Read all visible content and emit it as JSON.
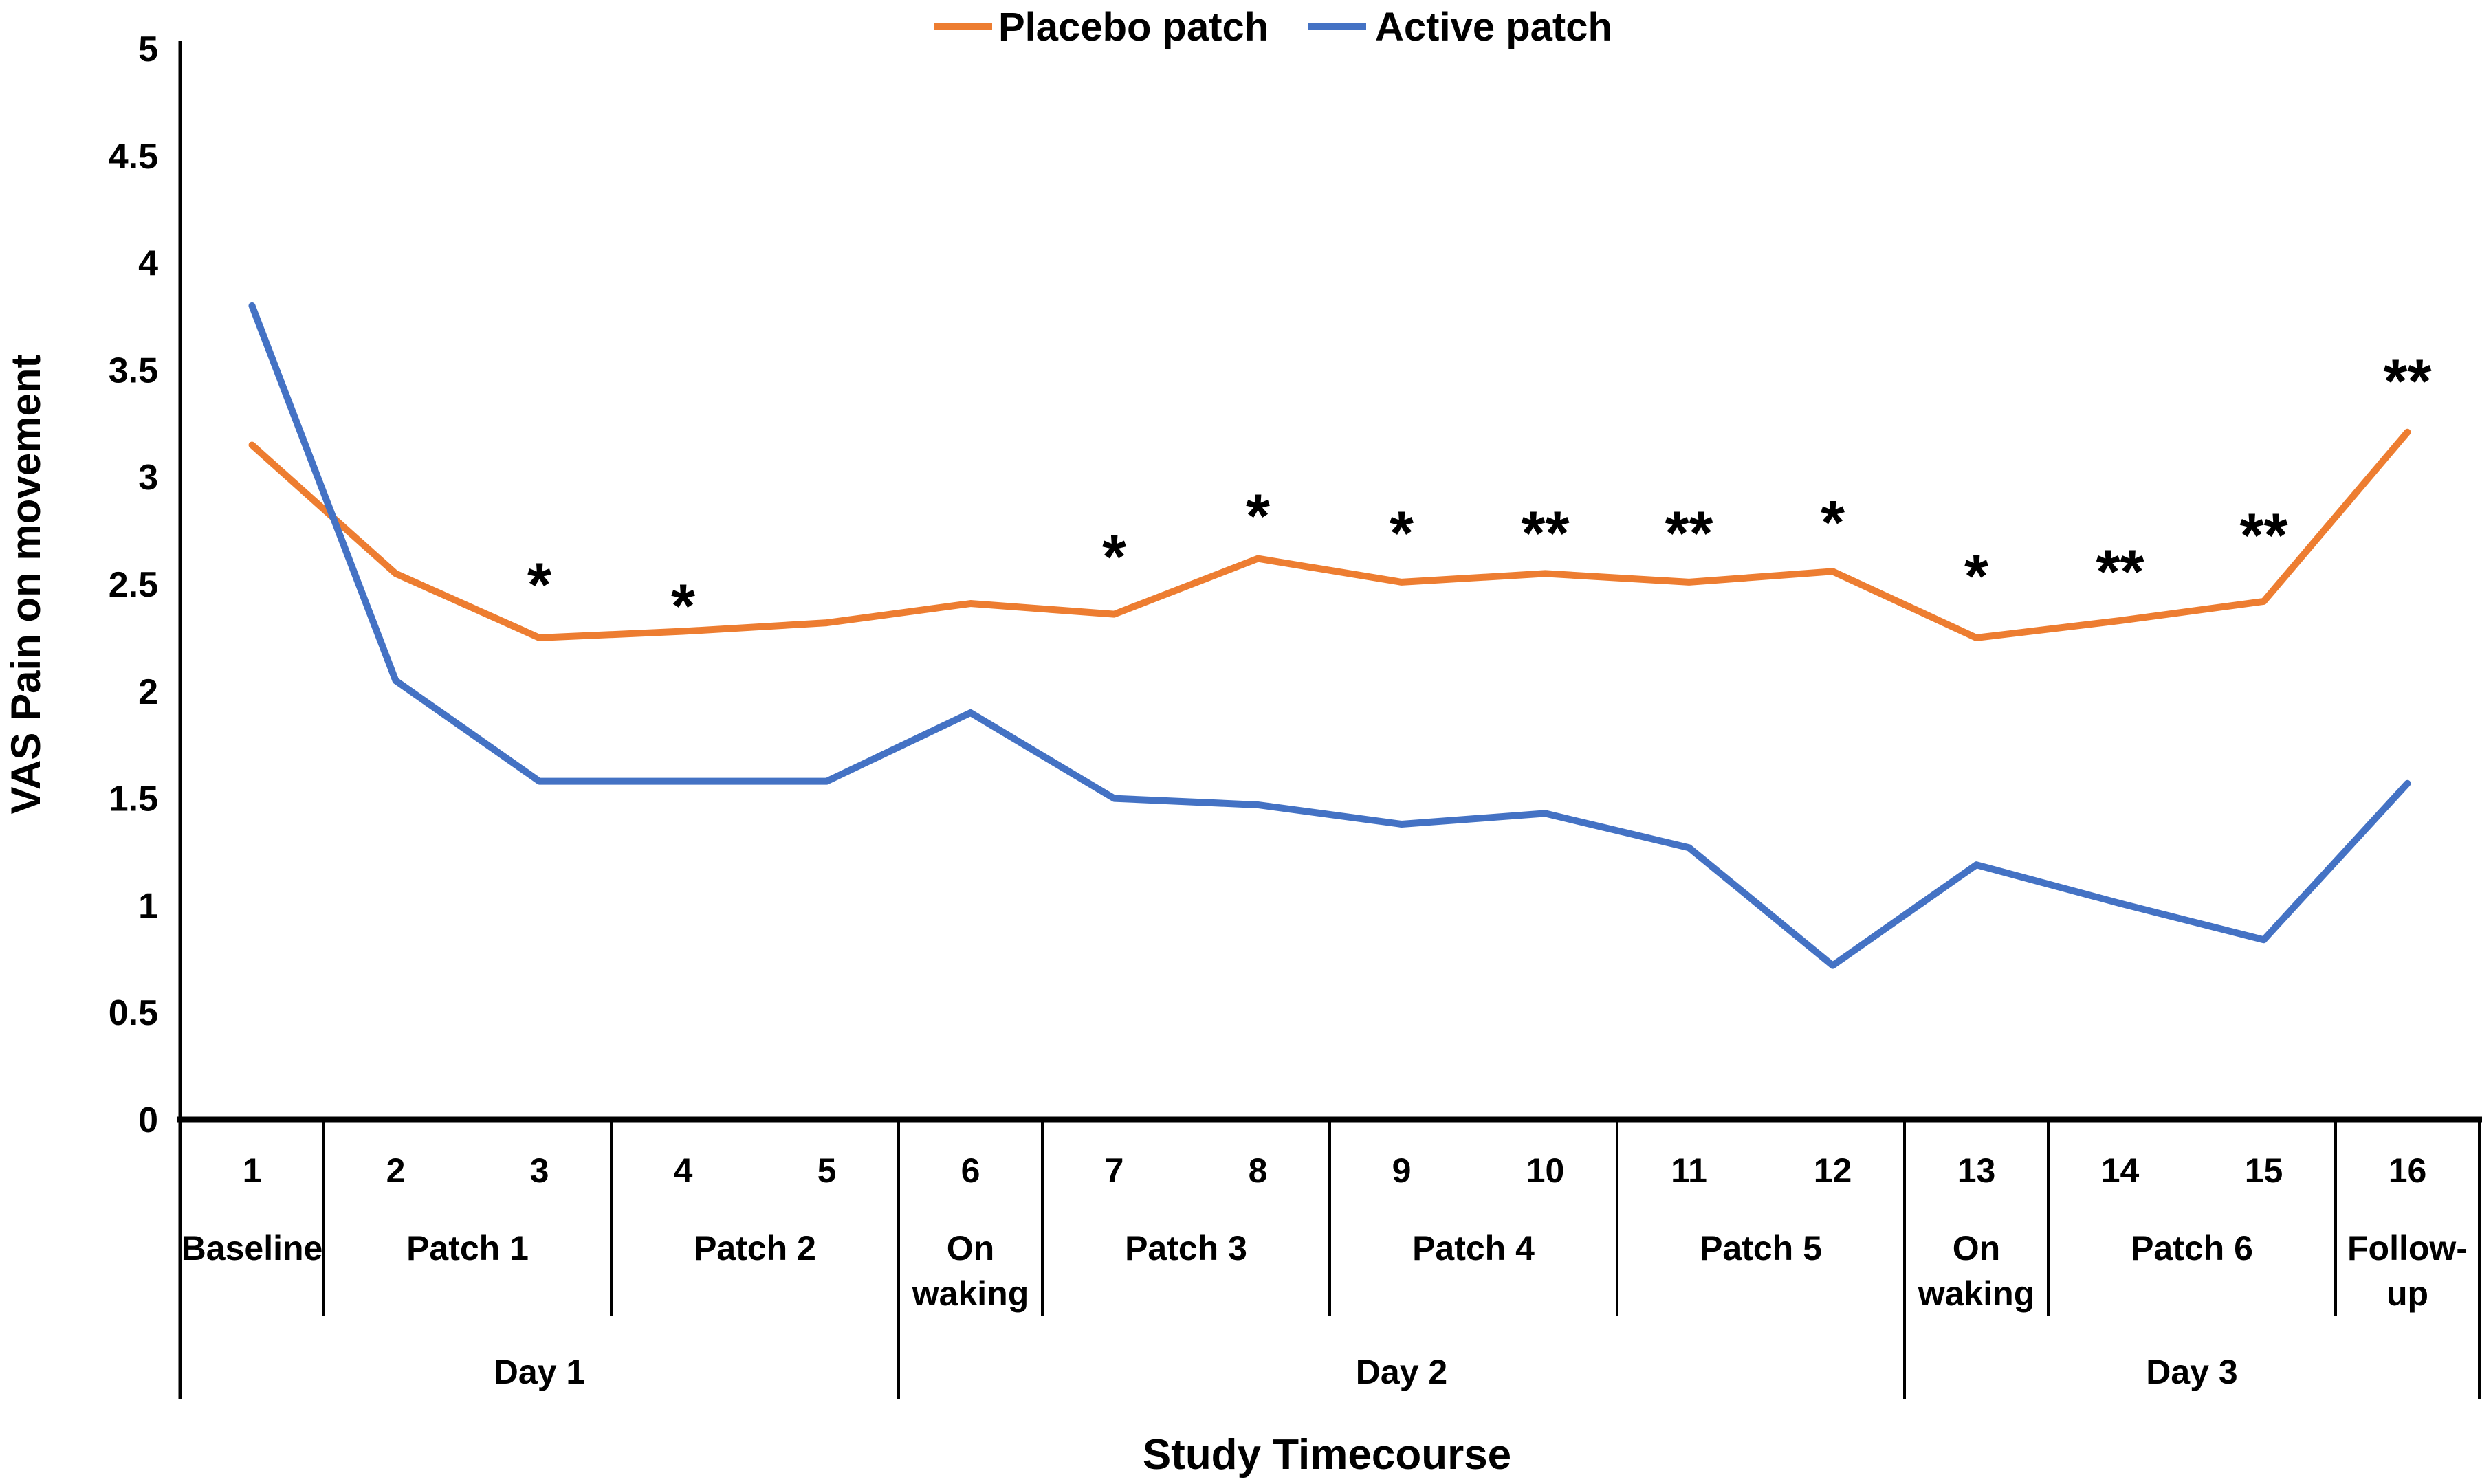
{
  "chart_data": {
    "type": "line",
    "title": "",
    "xlabel": "Study Timecourse",
    "ylabel": "VAS Pain on movement",
    "ylim": [
      0,
      5
    ],
    "grid": false,
    "legend_position": "top-center",
    "yticks": [
      5,
      4.5,
      4,
      3.5,
      3,
      2.5,
      2,
      1.5,
      1,
      0.5,
      0
    ],
    "x": [
      "1",
      "2",
      "3",
      "4",
      "5",
      "6",
      "7",
      "8",
      "9",
      "10",
      "11",
      "12",
      "13",
      "14",
      "15",
      "16"
    ],
    "series": [
      {
        "name": "Placebo patch",
        "color": "#ED7D31",
        "values": [
          3.15,
          2.55,
          2.25,
          2.28,
          2.32,
          2.41,
          2.36,
          2.62,
          2.51,
          2.55,
          2.51,
          2.56,
          2.25,
          2.33,
          2.42,
          3.21
        ]
      },
      {
        "name": "Active patch",
        "color": "#4472C4",
        "values": [
          3.8,
          2.05,
          1.58,
          1.58,
          1.58,
          1.9,
          1.5,
          1.47,
          1.38,
          1.43,
          1.27,
          0.72,
          1.19,
          1.01,
          0.84,
          1.57
        ]
      }
    ],
    "annotations": [
      {
        "point": 3,
        "text": "*",
        "y": 2.56
      },
      {
        "point": 4,
        "text": "*",
        "y": 2.46
      },
      {
        "point": 7,
        "text": "*",
        "y": 2.69
      },
      {
        "point": 8,
        "text": "*",
        "y": 2.88
      },
      {
        "point": 9,
        "text": "*",
        "y": 2.8
      },
      {
        "point": 10,
        "text": "**",
        "y": 2.8
      },
      {
        "point": 11,
        "text": "**",
        "y": 2.8
      },
      {
        "point": 12,
        "text": "*",
        "y": 2.85
      },
      {
        "point": 13,
        "text": "*",
        "y": 2.6
      },
      {
        "point": 14,
        "text": "**",
        "y": 2.62
      },
      {
        "point": 15,
        "text": "**",
        "y": 2.79
      },
      {
        "point": 16,
        "text": "**",
        "y": 3.51
      }
    ],
    "x_groups": [
      {
        "label": "Baseline",
        "span": 1,
        "lines": [
          "Baseline"
        ]
      },
      {
        "label": "Patch 1",
        "span": 2,
        "lines": [
          "Patch 1"
        ]
      },
      {
        "label": "Patch 2",
        "span": 2,
        "lines": [
          "Patch 2"
        ]
      },
      {
        "label": "On waking",
        "span": 1,
        "lines": [
          "On",
          "waking"
        ]
      },
      {
        "label": "Patch 3",
        "span": 2,
        "lines": [
          "Patch 3"
        ]
      },
      {
        "label": "Patch 4",
        "span": 2,
        "lines": [
          "Patch 4"
        ]
      },
      {
        "label": "Patch 5",
        "span": 2,
        "lines": [
          "Patch 5"
        ]
      },
      {
        "label": "On waking",
        "span": 1,
        "lines": [
          "On",
          "waking"
        ]
      },
      {
        "label": "Patch 6",
        "span": 2,
        "lines": [
          "Patch 6"
        ]
      },
      {
        "label": "Follow-up",
        "span": 1,
        "lines": [
          "Follow-",
          "up"
        ]
      }
    ],
    "x_days": [
      {
        "label": "Day 1",
        "span": 5
      },
      {
        "label": "Day 2",
        "span": 7
      },
      {
        "label": "Day 3",
        "span": 4
      }
    ]
  }
}
